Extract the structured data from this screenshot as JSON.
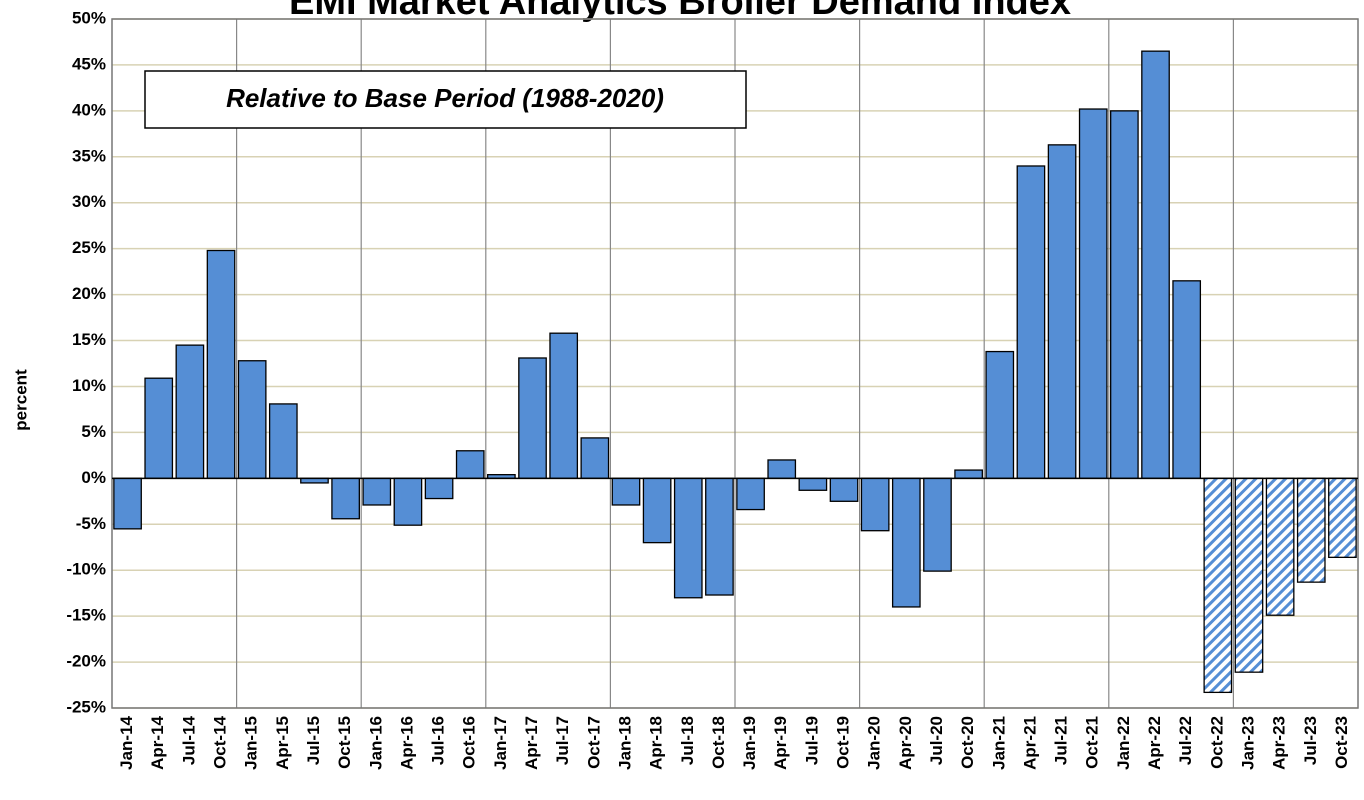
{
  "chart_data": {
    "type": "bar",
    "title": "EMI Market Analytics Broiler Demand Index",
    "annotation": "Relative to Base Period (1988-2020)",
    "y_label": "percent",
    "categories": [
      "Jan-14",
      "Apr-14",
      "Jul-14",
      "Oct-14",
      "Jan-15",
      "Apr-15",
      "Jul-15",
      "Oct-15",
      "Jan-16",
      "Apr-16",
      "Jul-16",
      "Oct-16",
      "Jan-17",
      "Apr-17",
      "Jul-17",
      "Oct-17",
      "Jan-18",
      "Apr-18",
      "Jul-18",
      "Oct-18",
      "Jan-19",
      "Apr-19",
      "Jul-19",
      "Oct-19",
      "Jan-20",
      "Apr-20",
      "Jul-20",
      "Oct-20",
      "Jan-21",
      "Apr-21",
      "Jul-21",
      "Oct-21",
      "Jan-22",
      "Apr-22",
      "Jul-22",
      "Oct-22",
      "Jan-23",
      "Apr-23",
      "Jul-23",
      "Oct-23"
    ],
    "values": [
      -5.5,
      10.9,
      14.5,
      24.8,
      12.8,
      8.1,
      -0.5,
      -4.4,
      -2.9,
      -5.1,
      -2.2,
      3.0,
      0.4,
      13.1,
      15.8,
      4.4,
      -2.9,
      -7.0,
      -13.0,
      -12.7,
      -3.4,
      2.0,
      -1.3,
      -2.5,
      -5.7,
      -14.0,
      -10.1,
      0.9,
      13.8,
      34.0,
      36.3,
      40.2,
      40.0,
      46.5,
      21.5,
      -23.3,
      -21.1,
      -14.9,
      -11.3,
      -8.6
    ],
    "hatched": [
      false,
      false,
      false,
      false,
      false,
      false,
      false,
      false,
      false,
      false,
      false,
      false,
      false,
      false,
      false,
      false,
      false,
      false,
      false,
      false,
      false,
      false,
      false,
      false,
      false,
      false,
      false,
      false,
      false,
      false,
      false,
      false,
      false,
      false,
      false,
      true,
      true,
      true,
      true,
      true
    ],
    "color": "#558ed5",
    "ylim": [
      -25,
      50
    ],
    "yticks": [
      {
        "value": -25,
        "label": "-25%"
      },
      {
        "value": -20,
        "label": "-20%"
      },
      {
        "value": -15,
        "label": "-15%"
      },
      {
        "value": -10,
        "label": "-10%"
      },
      {
        "value": -5,
        "label": "-5%"
      },
      {
        "value": 0,
        "label": "0%"
      },
      {
        "value": 5,
        "label": "5%"
      },
      {
        "value": 10,
        "label": "10%"
      },
      {
        "value": 15,
        "label": "15%"
      },
      {
        "value": 20,
        "label": "20%"
      },
      {
        "value": 25,
        "label": "25%"
      },
      {
        "value": 30,
        "label": "30%"
      },
      {
        "value": 35,
        "label": "35%"
      },
      {
        "value": 40,
        "label": "40%"
      },
      {
        "value": 45,
        "label": "45%"
      },
      {
        "value": 50,
        "label": "50%"
      }
    ],
    "grid": true
  }
}
